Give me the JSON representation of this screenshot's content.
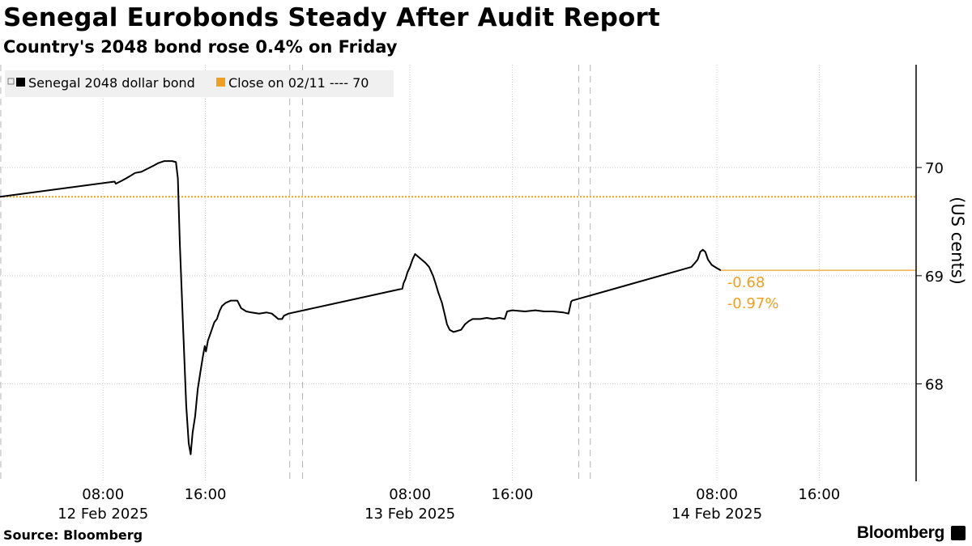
{
  "header": {
    "title": "Senegal Eurobonds Steady After Audit Report",
    "subtitle": "Country's 2048 bond rose 0.4% on Friday"
  },
  "footer": {
    "source": "Source: Bloomberg",
    "brand": "Bloomberg"
  },
  "chart_data": {
    "type": "line",
    "title": "Senegal Eurobonds Steady After Audit Report",
    "subtitle": "Country's 2048 bond rose 0.4% on Friday",
    "xlabel": "",
    "ylabel": "(US cents)",
    "ylim": [
      67.1,
      70.95
    ],
    "y_ticks": [
      68,
      69,
      70
    ],
    "x_ticks": [
      {
        "time": 8,
        "label": "08:00",
        "date_label": "12 Feb 2025"
      },
      {
        "time": 16,
        "label": "16:00",
        "date_label": ""
      },
      {
        "time": 32,
        "label": "08:00",
        "date_label": "13 Feb 2025"
      },
      {
        "time": 40,
        "label": "16:00",
        "date_label": ""
      },
      {
        "time": 56,
        "label": "08:00",
        "date_label": "14 Feb 2025"
      },
      {
        "time": 64,
        "label": "16:00",
        "date_label": ""
      }
    ],
    "x_time_unit": "hours from 00:00 on 12 Feb 2025",
    "xlim": [
      -0.06,
      71.58
    ],
    "day_dividers": [
      0,
      22.6,
      23.6,
      45.2,
      46.1
    ],
    "grid": true,
    "legend_position": "top-left",
    "colors": {
      "bond": "#000000",
      "close": "#f0a01e",
      "grid": "#cccccc"
    },
    "series": [
      {
        "name": "Senegal 2048 dollar bond",
        "points": [
          [
            -0.06,
            69.73
          ],
          [
            8.9,
            69.87
          ],
          [
            9.0,
            69.85
          ],
          [
            9.5,
            69.88
          ],
          [
            9.8,
            69.9
          ],
          [
            10.1,
            69.92
          ],
          [
            10.5,
            69.95
          ],
          [
            11.0,
            69.96
          ],
          [
            11.5,
            69.99
          ],
          [
            12.0,
            70.02
          ],
          [
            12.3,
            70.04
          ],
          [
            12.8,
            70.06
          ],
          [
            13.4,
            70.06
          ],
          [
            13.7,
            70.05
          ],
          [
            13.85,
            69.9
          ],
          [
            14.0,
            69.3
          ],
          [
            14.25,
            68.55
          ],
          [
            14.5,
            67.8
          ],
          [
            14.7,
            67.45
          ],
          [
            14.85,
            67.35
          ],
          [
            15.0,
            67.55
          ],
          [
            15.2,
            67.7
          ],
          [
            15.4,
            67.95
          ],
          [
            15.6,
            68.1
          ],
          [
            15.8,
            68.25
          ],
          [
            15.95,
            68.35
          ],
          [
            16.05,
            68.3
          ],
          [
            16.2,
            68.4
          ],
          [
            16.35,
            68.45
          ],
          [
            16.5,
            68.5
          ],
          [
            16.7,
            68.57
          ],
          [
            16.9,
            68.6
          ],
          [
            17.1,
            68.67
          ],
          [
            17.3,
            68.72
          ],
          [
            17.6,
            68.75
          ],
          [
            18.0,
            68.77
          ],
          [
            18.5,
            68.77
          ],
          [
            18.8,
            68.7
          ],
          [
            19.2,
            68.67
          ],
          [
            19.6,
            68.66
          ],
          [
            20.2,
            68.65
          ],
          [
            20.8,
            68.66
          ],
          [
            21.2,
            68.65
          ],
          [
            21.5,
            68.62
          ],
          [
            21.7,
            68.6
          ],
          [
            22.0,
            68.6
          ],
          [
            22.15,
            68.63
          ],
          [
            22.5,
            68.65
          ],
          [
            31.4,
            68.88
          ],
          [
            31.5,
            68.93
          ],
          [
            31.65,
            68.97
          ],
          [
            31.8,
            69.03
          ],
          [
            32.0,
            69.08
          ],
          [
            32.2,
            69.15
          ],
          [
            32.4,
            69.2
          ],
          [
            32.6,
            69.18
          ],
          [
            32.9,
            69.15
          ],
          [
            33.2,
            69.12
          ],
          [
            33.5,
            69.08
          ],
          [
            33.8,
            69.0
          ],
          [
            34.0,
            68.93
          ],
          [
            34.2,
            68.85
          ],
          [
            34.35,
            68.8
          ],
          [
            34.5,
            68.75
          ],
          [
            34.7,
            68.65
          ],
          [
            34.9,
            68.55
          ],
          [
            35.1,
            68.5
          ],
          [
            35.4,
            68.48
          ],
          [
            35.7,
            68.49
          ],
          [
            36.0,
            68.5
          ],
          [
            36.3,
            68.55
          ],
          [
            36.6,
            68.58
          ],
          [
            36.9,
            68.6
          ],
          [
            37.5,
            68.6
          ],
          [
            38.0,
            68.61
          ],
          [
            38.5,
            68.6
          ],
          [
            39.0,
            68.61
          ],
          [
            39.4,
            68.6
          ],
          [
            39.6,
            68.67
          ],
          [
            40.0,
            68.68
          ],
          [
            41.0,
            68.67
          ],
          [
            41.8,
            68.68
          ],
          [
            42.5,
            68.67
          ],
          [
            43.2,
            68.67
          ],
          [
            44.0,
            68.66
          ],
          [
            44.4,
            68.65
          ],
          [
            44.6,
            68.76
          ],
          [
            44.7,
            68.77
          ],
          [
            54.0,
            69.08
          ],
          [
            54.3,
            69.12
          ],
          [
            54.5,
            69.15
          ],
          [
            54.7,
            69.22
          ],
          [
            54.9,
            69.24
          ],
          [
            55.1,
            69.22
          ],
          [
            55.3,
            69.15
          ],
          [
            55.6,
            69.1
          ],
          [
            56.0,
            69.07
          ],
          [
            56.3,
            69.05
          ]
        ]
      },
      {
        "name": "Close on 02/11 ---- 70",
        "value": 69.73,
        "style": "dotted"
      }
    ],
    "last_value_line": {
      "value": 69.05,
      "start_time": 56.3
    },
    "annotations": [
      {
        "text": "-0.68"
      },
      {
        "text": "-0.97%"
      }
    ]
  }
}
